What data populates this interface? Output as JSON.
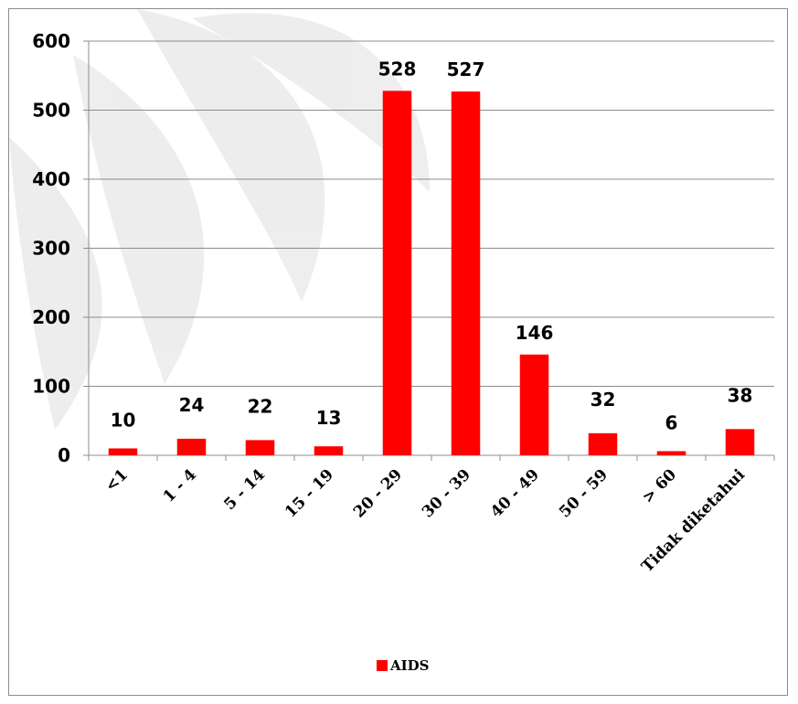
{
  "chart_data": {
    "type": "bar",
    "categories": [
      "<1",
      "1 - 4",
      "5 - 14",
      "15 - 19",
      "20 - 29",
      "30 - 39",
      "40 - 49",
      "50 - 59",
      "> 60",
      "Tidak diketahui"
    ],
    "series": [
      {
        "name": "AIDS",
        "values": [
          10,
          24,
          22,
          13,
          528,
          527,
          146,
          32,
          6,
          38
        ]
      }
    ],
    "y_ticks": [
      "0",
      "100",
      "200",
      "300",
      "400",
      "500",
      "600"
    ],
    "ylim": [
      0,
      600
    ],
    "grid": true,
    "legend_position": "bottom",
    "bar_color": "#ff0000"
  },
  "legend": {
    "label": "AIDS"
  }
}
